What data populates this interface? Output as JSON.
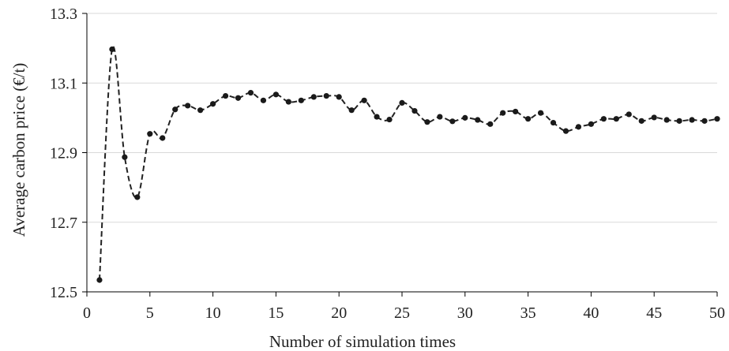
{
  "chart_data": {
    "type": "line",
    "title": "",
    "xlabel": "Number  of simulation times",
    "ylabel": "Average carbon price  (€/t)",
    "xlim": [
      0,
      50
    ],
    "ylim": [
      12.5,
      13.3
    ],
    "xticks": [
      "0",
      "5",
      "10",
      "15",
      "20",
      "25",
      "30",
      "35",
      "40",
      "45",
      "50"
    ],
    "yticks": [
      "12.5",
      "12.7",
      "12.9",
      "13.1",
      "13.3"
    ],
    "grid": "horizontal",
    "legend": "none",
    "series_color": "#222222",
    "x": [
      1,
      2,
      3,
      4,
      5,
      6,
      7,
      8,
      9,
      10,
      11,
      12,
      13,
      14,
      15,
      16,
      17,
      18,
      19,
      20,
      21,
      22,
      23,
      24,
      25,
      26,
      27,
      28,
      29,
      30,
      31,
      32,
      33,
      34,
      35,
      36,
      37,
      38,
      39,
      40,
      41,
      42,
      43,
      44,
      45,
      46,
      47,
      48,
      49,
      50
    ],
    "values": [
      12.534,
      13.197,
      12.887,
      12.772,
      12.954,
      12.942,
      13.024,
      13.035,
      13.022,
      13.04,
      13.063,
      13.057,
      13.072,
      13.05,
      13.067,
      13.046,
      13.05,
      13.06,
      13.063,
      13.06,
      13.022,
      13.05,
      13.003,
      12.995,
      13.043,
      13.02,
      12.988,
      13.003,
      12.99,
      13.0,
      12.994,
      12.982,
      13.014,
      13.018,
      12.997,
      13.014,
      12.986,
      12.962,
      12.974,
      12.982,
      12.997,
      12.997,
      13.01,
      12.991,
      13.001,
      12.994,
      12.991,
      12.994,
      12.991,
      12.997
    ]
  }
}
